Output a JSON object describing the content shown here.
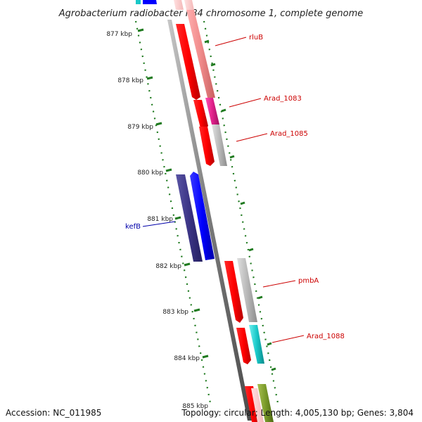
{
  "title": "Agrobacterium radiobacter K84 chromosome 1, complete genome",
  "accession": "Accession: NC_011985",
  "topology": "Topology: circular; Length: 4,005,130 bp; Genes: 3,804",
  "ticks": [
    "877 kbp",
    "878 kbp",
    "879 kbp",
    "880 kbp",
    "881 kbp",
    "882 kbp",
    "883 kbp",
    "884 kbp",
    "885 kbp"
  ],
  "genes": [
    {
      "label": "rluB",
      "color": "#cc0000"
    },
    {
      "label": "Arad_1083",
      "color": "#cc0000"
    },
    {
      "label": "Arad_1085",
      "color": "#cc0000"
    },
    {
      "label": "kefB",
      "color": "#0000aa"
    },
    {
      "label": "pmbA",
      "color": "#cc0000"
    },
    {
      "label": "Arad_1088",
      "color": "#cc0000"
    }
  ],
  "colors": {
    "forward_cds": "#ee0000",
    "reverse_cds": "#1a1aee",
    "reverse_cds_dark": "#3b3485",
    "backbone": "#8a8a8a",
    "tick_green": "#1f7a1f",
    "cog_pink": "#f08a8a",
    "cog_magenta": "#e0208a",
    "cog_gray": "#b8b8b8",
    "cog_cyan": "#19c8c8",
    "cog_olive": "#7a9a2a"
  }
}
